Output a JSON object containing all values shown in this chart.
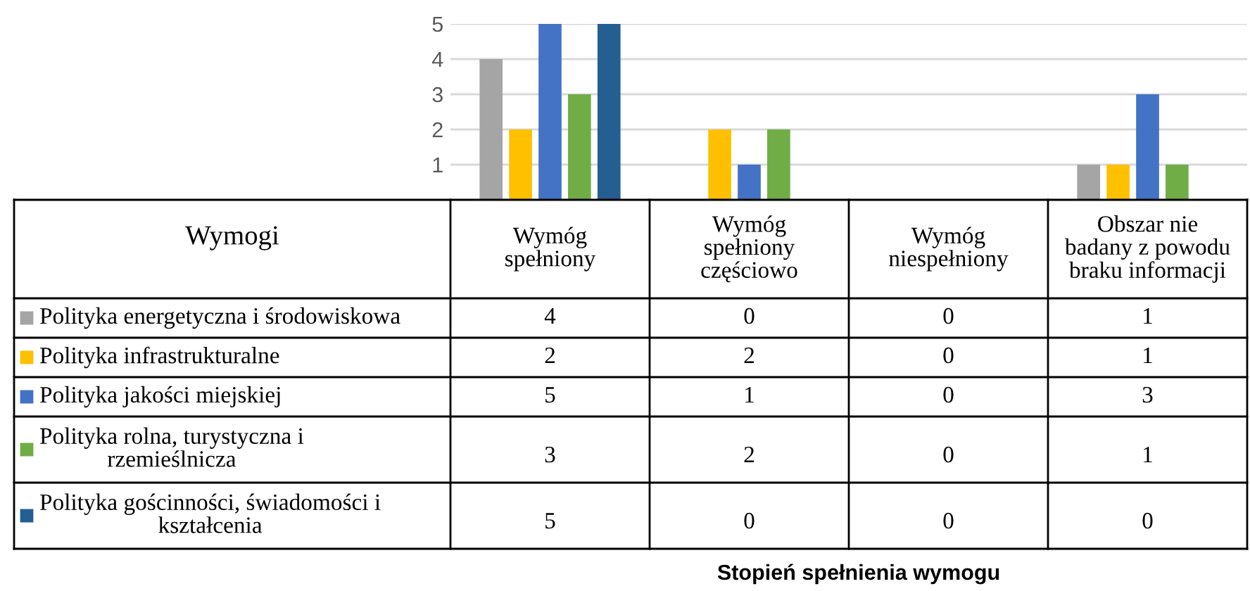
{
  "chart_data": {
    "type": "bar",
    "categories": [
      "Wymóg\nspełniony",
      "Wymóg\nspełniony\nczęściowo",
      "Wymóg\nniespełniony",
      "Obszar nie\nbadany z powodu\nbraku informacji"
    ],
    "series": [
      {
        "name": "Polityka energetyczna i środowiskowa",
        "color": "#a5a5a5",
        "values": [
          4,
          0,
          0,
          1
        ]
      },
      {
        "name": "Polityka infrastrukturalne",
        "color": "#ffc000",
        "values": [
          2,
          2,
          0,
          1
        ]
      },
      {
        "name": "Polityka jakości miejskiej",
        "color": "#4472c4",
        "values": [
          5,
          1,
          0,
          3
        ]
      },
      {
        "name": "Polityka rolna, turystyczna i\nrzemieślnicza",
        "color": "#70ad47",
        "values": [
          3,
          2,
          0,
          1
        ]
      },
      {
        "name": "Polityka gościnności, świadomości i\nkształcenia",
        "color": "#255e91",
        "values": [
          5,
          0,
          0,
          0
        ]
      }
    ],
    "legend_title": "Wymogi",
    "annotations": [
      "Stopień spełnienia wymogu"
    ],
    "ylim": [
      0,
      5
    ],
    "yticks": [
      1,
      2,
      3,
      4,
      5
    ],
    "grid": "y",
    "legend": "bottom left",
    "data_labels": true
  }
}
